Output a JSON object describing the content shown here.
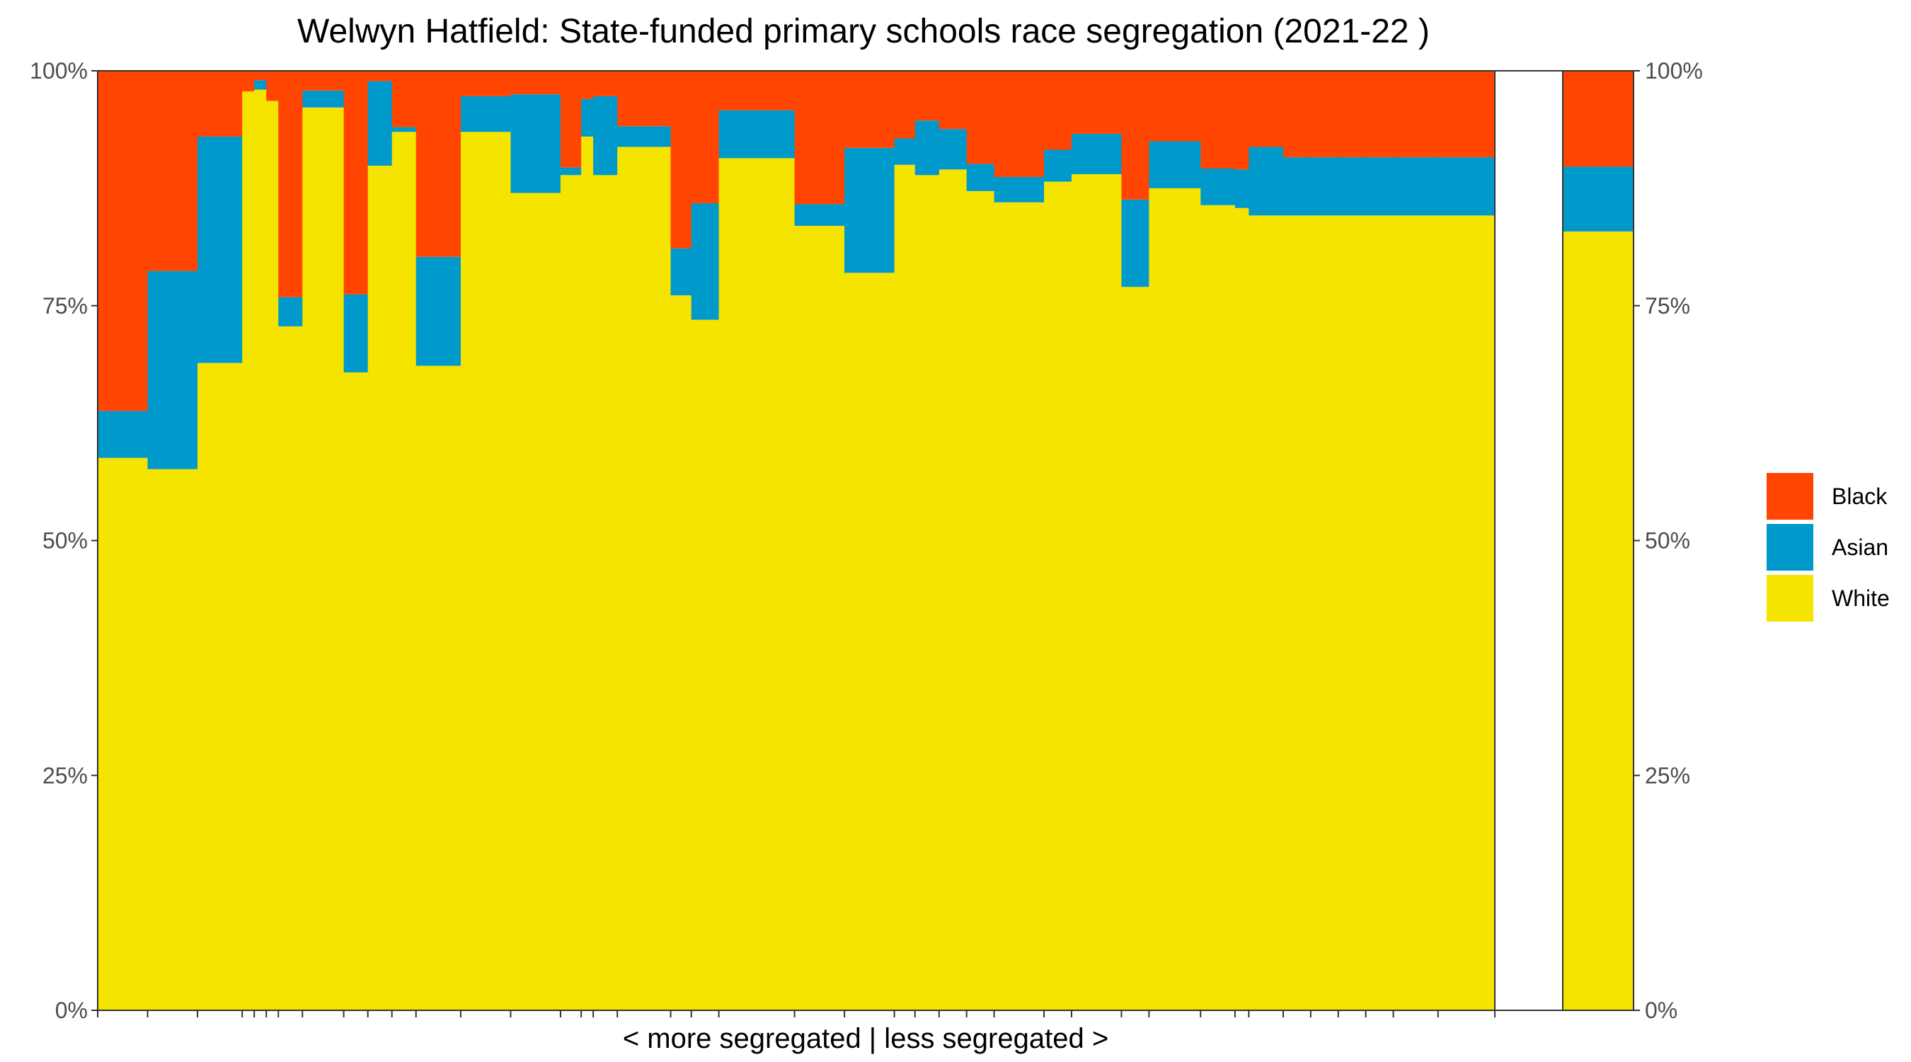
{
  "chart_data": {
    "type": "bar",
    "subtype": "stacked-variable-width-percent",
    "title": "Welwyn Hatfield: State-funded primary schools race segregation (2021-22 )",
    "xlabel": "< more segregated | less segregated >",
    "ylabel": "",
    "ylim": [
      0,
      100
    ],
    "y_ticks": [
      "0%",
      "25%",
      "50%",
      "75%",
      "100%"
    ],
    "y_tick_values": [
      0,
      25,
      50,
      75,
      100
    ],
    "secondary_y_axis": true,
    "grid": false,
    "legend_position": "right",
    "stack_order": [
      "White",
      "Asian",
      "Black"
    ],
    "legend": [
      {
        "name": "Black",
        "color": "#FF4500"
      },
      {
        "name": "Asian",
        "color": "#0099CC"
      },
      {
        "name": "White",
        "color": "#F5E300"
      }
    ],
    "categories": [
      "1",
      "2",
      "3",
      "4",
      "5",
      "6",
      "7",
      "8",
      "9",
      "10",
      "11",
      "12",
      "13",
      "14",
      "15",
      "16",
      "17",
      "18",
      "19",
      "20",
      "21",
      "22",
      "23",
      "24",
      "25",
      "26",
      "27",
      "28",
      "29",
      "30",
      "31",
      "32",
      "33",
      "34",
      "35",
      "36",
      "37",
      "38",
      "39",
      "40",
      "41"
    ],
    "bar_relative_sizes": [
      2.9,
      2.9,
      2.6,
      0.7,
      0.7,
      0.7,
      1.4,
      2.4,
      1.4,
      1.4,
      1.4,
      2.6,
      2.9,
      2.9,
      1.2,
      0.7,
      1.4,
      3.1,
      1.2,
      1.6,
      4.4,
      2.9,
      2.9,
      1.2,
      1.4,
      1.6,
      1.6,
      2.9,
      1.6,
      2.9,
      1.6,
      3.0,
      2.0,
      0.8,
      2.0,
      1.6,
      1.6,
      1.6,
      1.6,
      2.6,
      3.3
    ],
    "series": [
      {
        "name": "White",
        "values": [
          58.8,
          57.6,
          68.9,
          97.8,
          98.0,
          96.8,
          72.8,
          96.1,
          67.9,
          89.9,
          93.5,
          68.6,
          93.5,
          87.0,
          88.9,
          93.0,
          88.9,
          91.9,
          76.1,
          73.5,
          90.7,
          83.5,
          78.5,
          90.0,
          88.9,
          89.5,
          87.2,
          86.0,
          88.2,
          89.0,
          77.0,
          87.5,
          85.7,
          85.4,
          84.6,
          84.6,
          84.6,
          84.6,
          84.6,
          84.6,
          84.6
        ]
      },
      {
        "name": "Asian",
        "values": [
          5.0,
          21.1,
          24.1,
          0.0,
          1.0,
          0.0,
          3.1,
          1.8,
          8.3,
          9.0,
          0.5,
          11.6,
          3.8,
          10.5,
          0.8,
          4.0,
          8.4,
          2.2,
          5.0,
          12.4,
          5.1,
          2.3,
          13.3,
          2.8,
          5.8,
          4.3,
          2.9,
          2.7,
          3.4,
          4.3,
          9.3,
          5.0,
          3.9,
          4.1,
          7.3,
          6.2,
          6.2,
          6.2,
          6.2,
          6.2,
          6.2
        ]
      },
      {
        "name": "Black",
        "values": [
          36.2,
          21.3,
          7.0,
          2.2,
          1.0,
          3.2,
          24.1,
          2.1,
          23.8,
          1.1,
          6.0,
          19.8,
          2.7,
          2.5,
          10.3,
          3.0,
          2.7,
          5.9,
          18.9,
          14.1,
          4.2,
          14.2,
          8.2,
          7.2,
          5.3,
          6.2,
          9.9,
          11.3,
          8.4,
          6.7,
          13.7,
          7.5,
          10.4,
          10.5,
          8.1,
          9.2,
          9.2,
          9.2,
          9.2,
          9.2,
          9.2
        ]
      }
    ],
    "summary_bar": {
      "White": 82.9,
      "Asian": 6.9,
      "Black": 10.2
    }
  }
}
